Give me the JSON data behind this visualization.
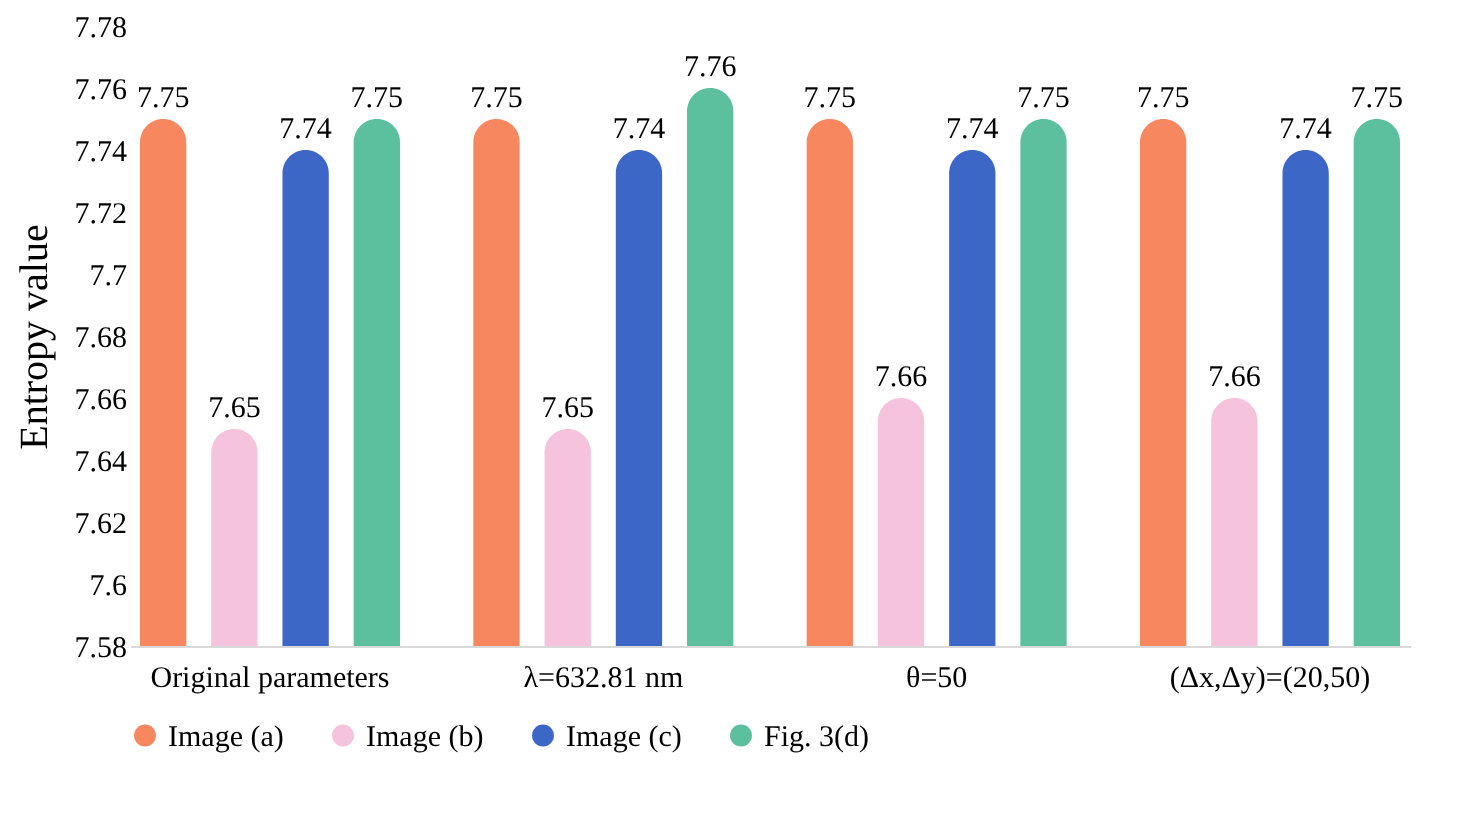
{
  "chart_data": {
    "type": "bar",
    "ylabel": "Entropy value",
    "categories": [
      "Original parameters",
      "λ=632.81 nm",
      "θ=50",
      "(Δx,Δy)=(20,50)"
    ],
    "series": [
      {
        "name": "Image (a)",
        "color": "#f6875e",
        "values": [
          7.75,
          7.75,
          7.75,
          7.75
        ]
      },
      {
        "name": "Image (b)",
        "color": "#f5c3dc",
        "values": [
          7.65,
          7.65,
          7.66,
          7.66
        ]
      },
      {
        "name": "Image (c)",
        "color": "#3c67c6",
        "values": [
          7.74,
          7.74,
          7.74,
          7.74
        ]
      },
      {
        "name": "Fig. 3(d)",
        "color": "#5cc09f",
        "values": [
          7.75,
          7.76,
          7.75,
          7.75
        ]
      }
    ],
    "ylim": [
      7.58,
      7.78
    ],
    "yticks": [
      7.58,
      7.6,
      7.62,
      7.64,
      7.66,
      7.68,
      7.7,
      7.72,
      7.74,
      7.76,
      7.78
    ],
    "data_labels": true,
    "legend": "bottom",
    "grid": false
  }
}
